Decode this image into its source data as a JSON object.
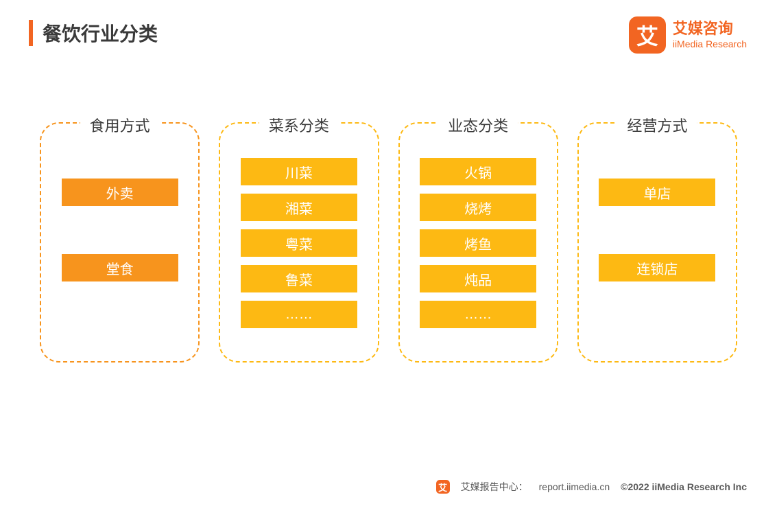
{
  "title": "餐饮行业分类",
  "title_accent_color": "#f26522",
  "title_text_color": "#3a3a3a",
  "logo": {
    "icon_bg": "#f26522",
    "icon_text": "艾",
    "text_cn": "艾媒咨询",
    "text_en": "iiMedia Research",
    "text_color": "#f26522"
  },
  "categories": [
    {
      "title": "食用方式",
      "border_color": "#f7941d",
      "item_bg": "#f7941d",
      "layout": "spread",
      "items": [
        "外卖",
        "堂食"
      ]
    },
    {
      "title": "菜系分类",
      "border_color": "#fdb913",
      "item_bg": "#fdb913",
      "layout": "tight",
      "items": [
        "川菜",
        "湘菜",
        "粤菜",
        "鲁菜",
        "……"
      ]
    },
    {
      "title": "业态分类",
      "border_color": "#fdb913",
      "item_bg": "#fdb913",
      "layout": "tight",
      "items": [
        "火锅",
        "烧烤",
        "烤鱼",
        "炖品",
        "……"
      ]
    },
    {
      "title": "经营方式",
      "border_color": "#fdb913",
      "item_bg": "#fdb913",
      "layout": "spread",
      "items": [
        "单店",
        "连锁店"
      ]
    }
  ],
  "footer": {
    "icon_bg": "#f26522",
    "icon_text": "艾",
    "label": "艾媒报告中心：",
    "link": "report.iimedia.cn",
    "copyright": "©2022  iiMedia Research  Inc"
  },
  "background_color": "#ffffff",
  "border_radius": 28,
  "dash_width": 2
}
